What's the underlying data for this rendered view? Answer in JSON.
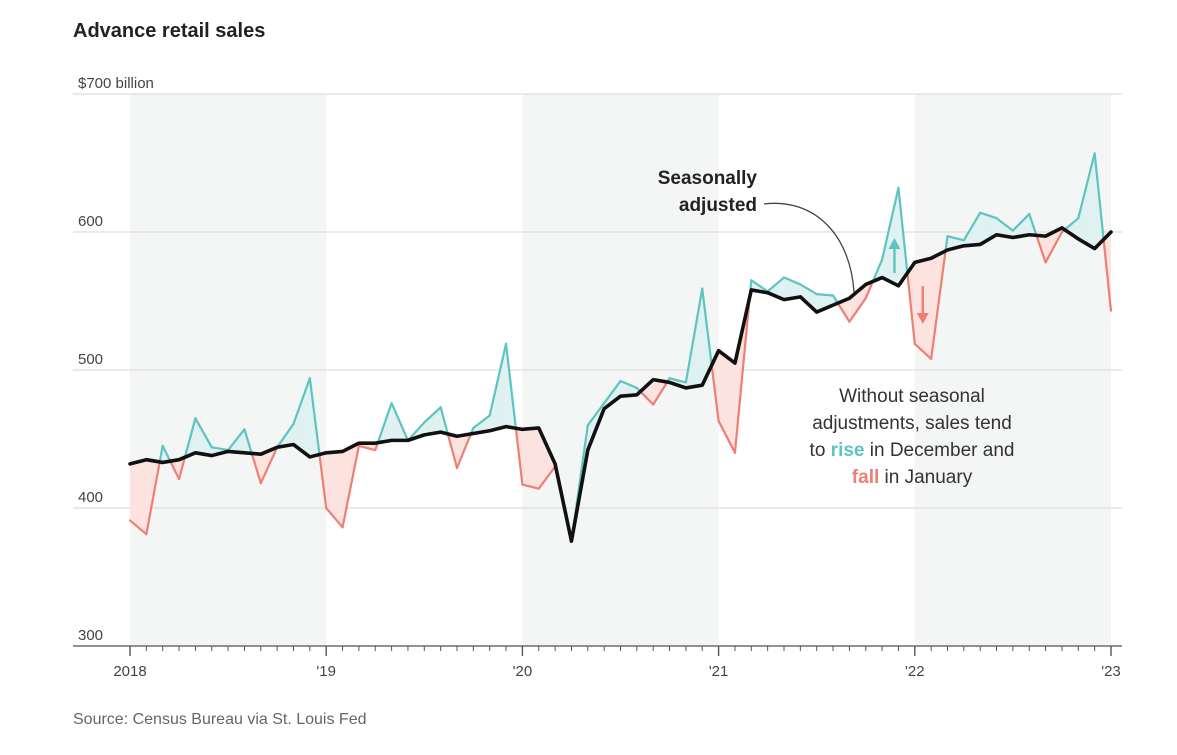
{
  "chart_data": {
    "type": "line",
    "title": "Advance retail sales",
    "ytick_labels": [
      "$700 billion",
      "600",
      "500",
      "400",
      "300"
    ],
    "yticks": [
      700,
      600,
      500,
      400,
      300
    ],
    "ylim": [
      300,
      700
    ],
    "xlim": [
      "2018-01",
      "2023-01"
    ],
    "x_tick_labels": [
      "2018",
      "'19",
      "'20",
      "'21",
      "'22",
      "'23"
    ],
    "x_tick_years": [
      2018,
      2019,
      2020,
      2021,
      2022,
      2023
    ],
    "shaded_years": [
      2018,
      2020,
      2022
    ],
    "colors": {
      "seasonally_adjusted": "#111111",
      "rise": "#5ec4c0",
      "fall": "#ee7f72",
      "rise_fill": "#dff2f1",
      "fall_fill": "#fde3df",
      "shade": "#f4f5f5",
      "grid": "#dddddd"
    },
    "series": [
      {
        "key": "nsa",
        "values": [
          391,
          381,
          445,
          421,
          465,
          444,
          442,
          457,
          418,
          444,
          461,
          494,
          400,
          386,
          445,
          442,
          476,
          449,
          462,
          473,
          429,
          458,
          467,
          519,
          417,
          414,
          430,
          376,
          460,
          476,
          492,
          487,
          475,
          494,
          491,
          559,
          463,
          440,
          565,
          557,
          567,
          562,
          555,
          554,
          535,
          552,
          580,
          632,
          519,
          508,
          597,
          594,
          614,
          610,
          601,
          613,
          578,
          600,
          610,
          657,
          543
        ],
        "color": "#5ec4c0"
      },
      {
        "key": "sa",
        "name": "Seasonally adjusted",
        "values": [
          432,
          435,
          433,
          435,
          440,
          438,
          441,
          440,
          439,
          444,
          446,
          437,
          440,
          441,
          447,
          447,
          449,
          449,
          453,
          455,
          452,
          454,
          456,
          459,
          457,
          458,
          432,
          376,
          442,
          472,
          481,
          482,
          493,
          491,
          487,
          489,
          514,
          505,
          558,
          556,
          551,
          553,
          542,
          547,
          552,
          562,
          567,
          561,
          578,
          581,
          587,
          590,
          591,
          598,
          596,
          598,
          597,
          603,
          595,
          588,
          600
        ],
        "color": "#111111"
      }
    ],
    "annotations": {
      "sa_label_line1": "Seasonally",
      "sa_label_line2": "adjusted",
      "note_line1": "Without seasonal",
      "note_line2": "adjustments, sales tend",
      "note_line3_pre": "to ",
      "note_line3_rise": "rise",
      "note_line3_post": " in December and",
      "note_line4_fall": "fall",
      "note_line4_post": " in January"
    },
    "source": "Source: Census Bureau via St. Louis Fed"
  }
}
